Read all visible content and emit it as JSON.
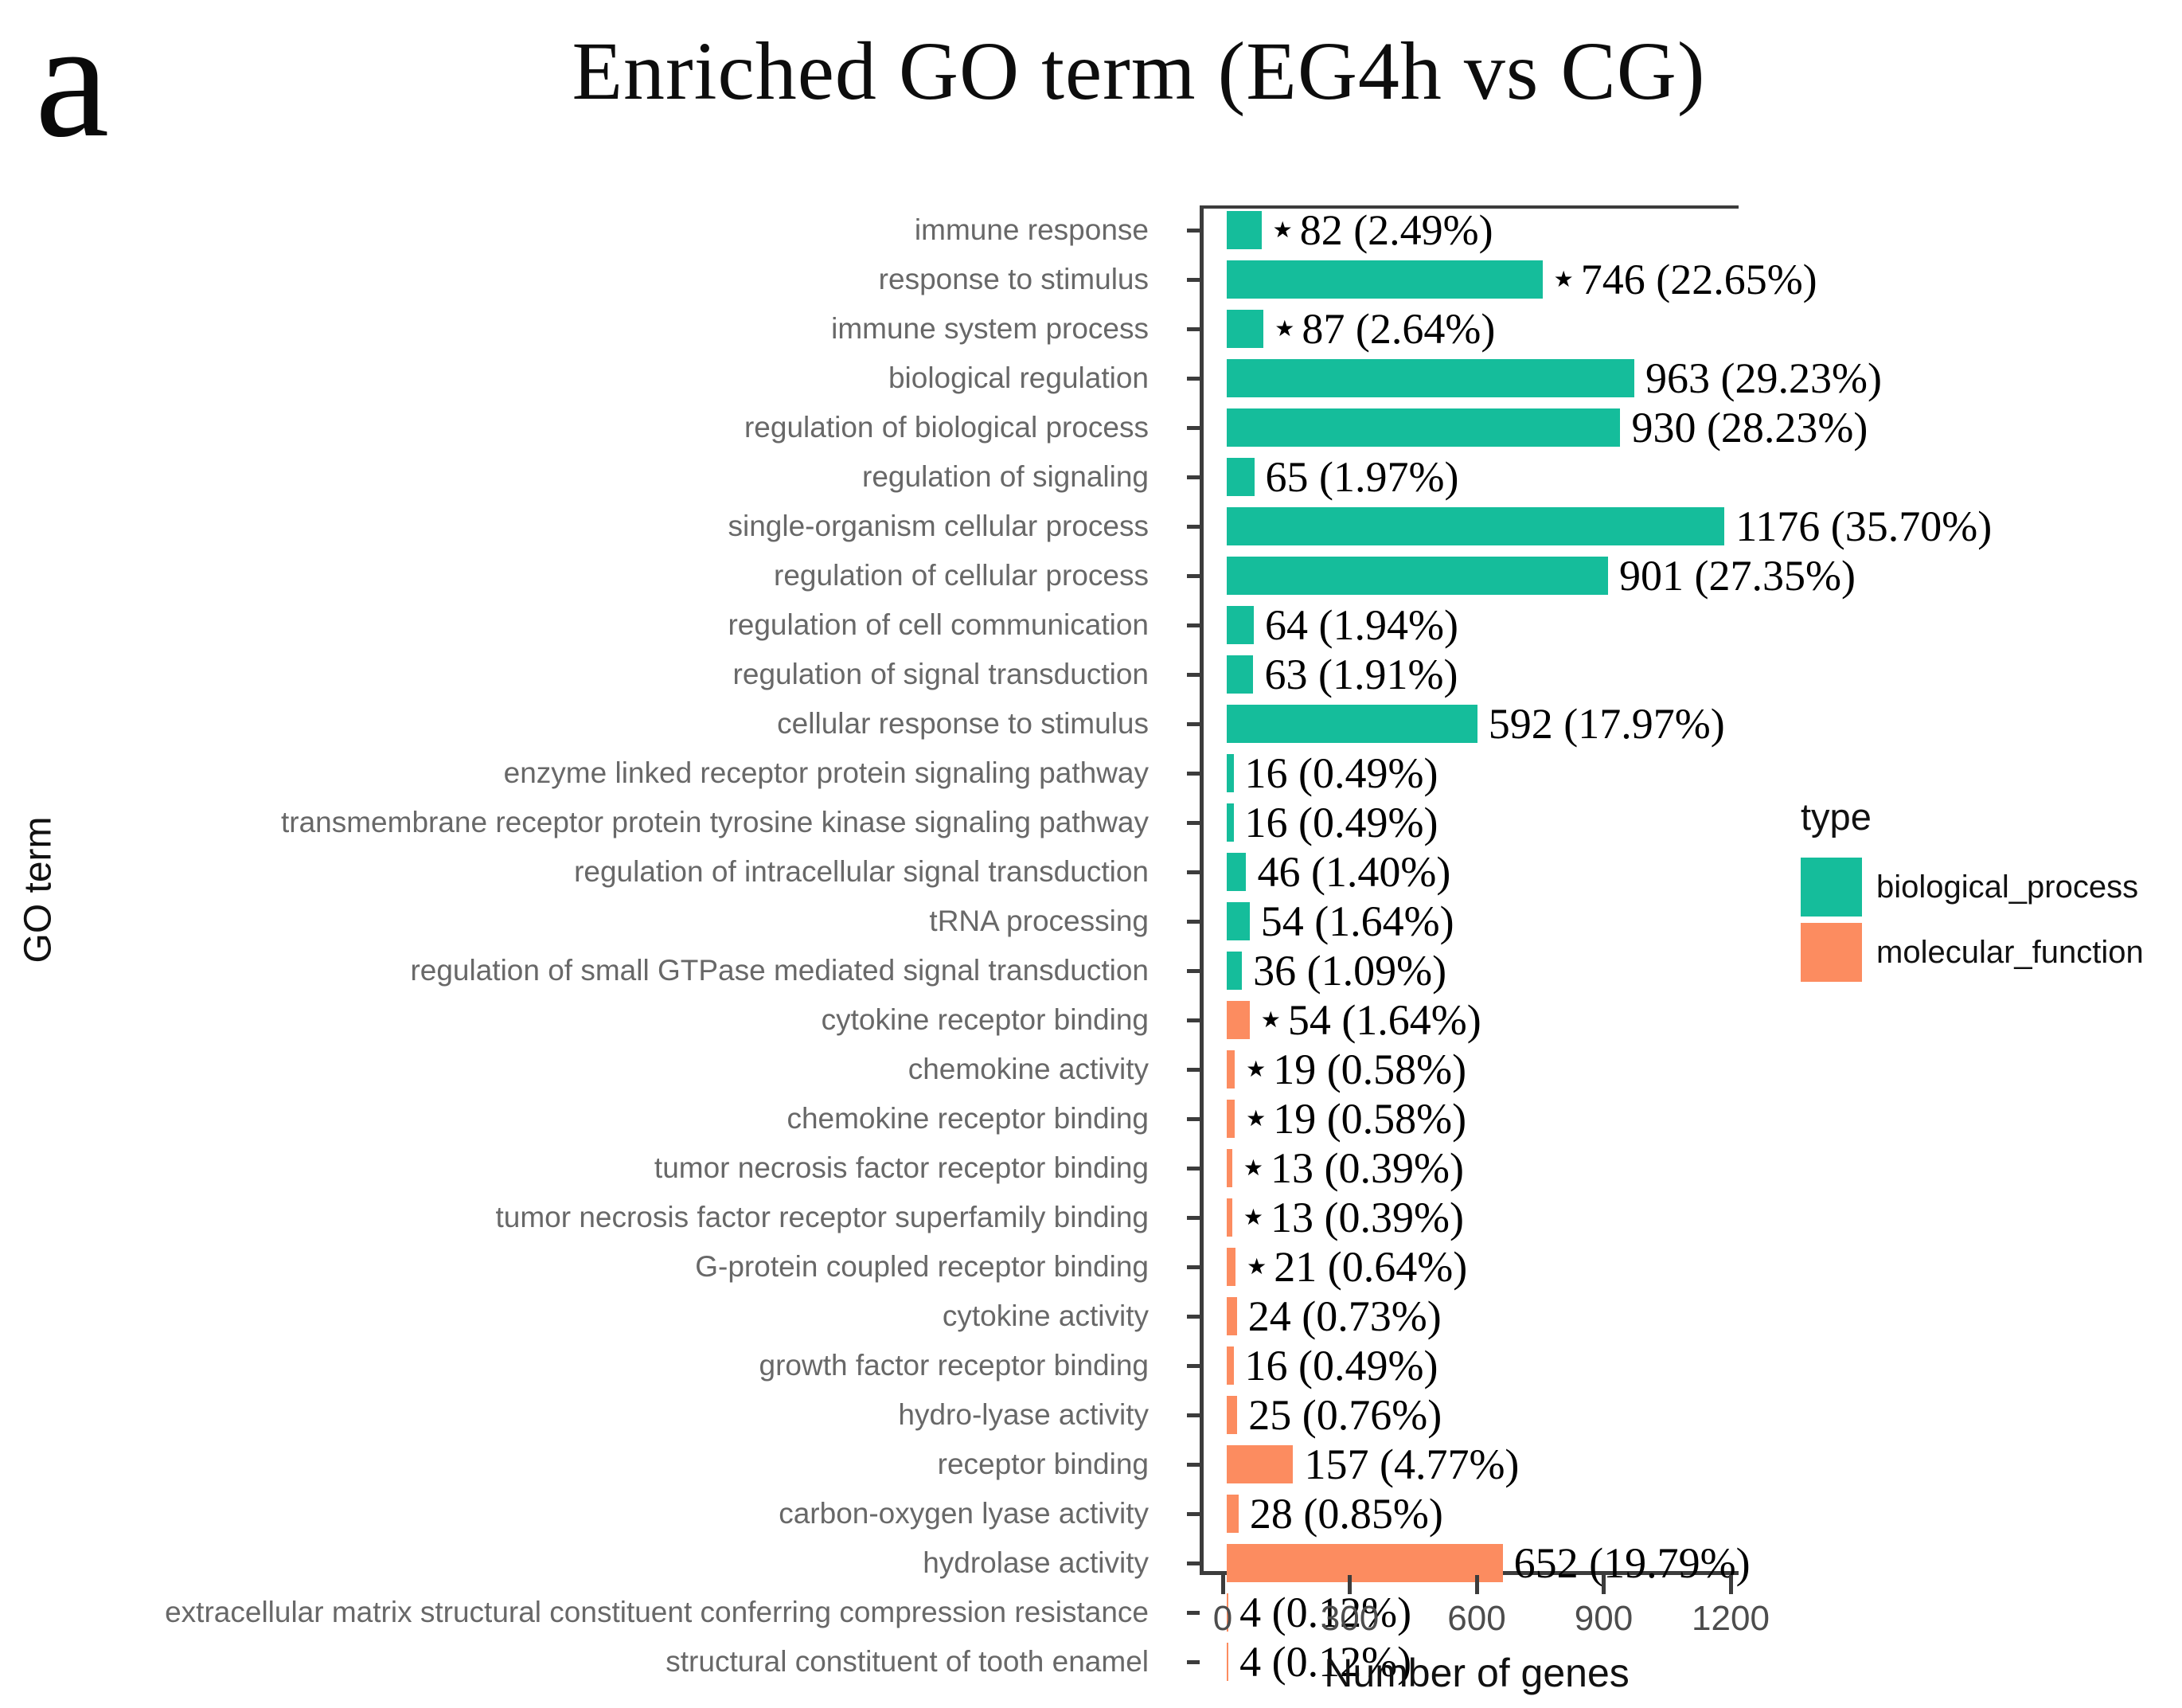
{
  "panel_label": "a",
  "title": "Enriched GO term (EG4h vs CG)",
  "markers": {
    "significant": "★"
  },
  "colors": {
    "biological_process": "#15BD9B",
    "molecular_function": "#FC8C60",
    "frame": "#3C3C3C",
    "category_label": "#686868",
    "tick_label": "#4D4D4D"
  },
  "legend": {
    "title": "type",
    "items": [
      {
        "label": "biological_process",
        "color": "#15BD9B"
      },
      {
        "label": "molecular_function",
        "color": "#FC8C60"
      }
    ]
  },
  "chart_data": {
    "type": "bar",
    "orientation": "horizontal",
    "title": "Enriched GO term (EG4h vs CG)",
    "xlabel": "Number of genes",
    "ylabel": "GO term",
    "xlim": [
      0,
      1200
    ],
    "x_ticks": [
      0,
      300,
      600,
      900,
      1200
    ],
    "grid": false,
    "legend_position": "right",
    "bars": [
      {
        "term": "immune response",
        "value": 82,
        "pct": "2.49",
        "display": "82 (2.49%)",
        "type": "biological_process",
        "starred": true
      },
      {
        "term": "response to stimulus",
        "value": 746,
        "pct": "22.65",
        "display": "746 (22.65%)",
        "type": "biological_process",
        "starred": true
      },
      {
        "term": "immune system process",
        "value": 87,
        "pct": "2.64",
        "display": "87 (2.64%)",
        "type": "biological_process",
        "starred": true
      },
      {
        "term": "biological regulation",
        "value": 963,
        "pct": "29.23",
        "display": "963 (29.23%)",
        "type": "biological_process",
        "starred": false
      },
      {
        "term": "regulation of biological process",
        "value": 930,
        "pct": "28.23",
        "display": "930 (28.23%)",
        "type": "biological_process",
        "starred": false
      },
      {
        "term": "regulation of signaling",
        "value": 65,
        "pct": "1.97",
        "display": "65 (1.97%)",
        "type": "biological_process",
        "starred": false
      },
      {
        "term": "single-organism cellular process",
        "value": 1176,
        "pct": "35.70",
        "display": "1176 (35.70%)",
        "type": "biological_process",
        "starred": false
      },
      {
        "term": "regulation of cellular process",
        "value": 901,
        "pct": "27.35",
        "display": "901 (27.35%)",
        "type": "biological_process",
        "starred": false
      },
      {
        "term": "regulation of cell communication",
        "value": 64,
        "pct": "1.94",
        "display": "64 (1.94%)",
        "type": "biological_process",
        "starred": false
      },
      {
        "term": "regulation of signal transduction",
        "value": 63,
        "pct": "1.91",
        "display": "63 (1.91%)",
        "type": "biological_process",
        "starred": false
      },
      {
        "term": "cellular response to stimulus",
        "value": 592,
        "pct": "17.97",
        "display": "592 (17.97%)",
        "type": "biological_process",
        "starred": false
      },
      {
        "term": "enzyme linked receptor protein signaling pathway",
        "value": 16,
        "pct": "0.49",
        "display": "16 (0.49%)",
        "type": "biological_process",
        "starred": false
      },
      {
        "term": "transmembrane receptor protein tyrosine kinase signaling pathway",
        "value": 16,
        "pct": "0.49",
        "display": "16 (0.49%)",
        "type": "biological_process",
        "starred": false
      },
      {
        "term": "regulation of intracellular signal transduction",
        "value": 46,
        "pct": "1.40",
        "display": "46 (1.40%)",
        "type": "biological_process",
        "starred": false
      },
      {
        "term": "tRNA processing",
        "value": 54,
        "pct": "1.64",
        "display": "54 (1.64%)",
        "type": "biological_process",
        "starred": false
      },
      {
        "term": "regulation of small GTPase mediated signal transduction",
        "value": 36,
        "pct": "1.09",
        "display": "36 (1.09%)",
        "type": "biological_process",
        "starred": false
      },
      {
        "term": "cytokine receptor binding",
        "value": 54,
        "pct": "1.64",
        "display": "54 (1.64%)",
        "type": "molecular_function",
        "starred": true
      },
      {
        "term": "chemokine activity",
        "value": 19,
        "pct": "0.58",
        "display": "19 (0.58%)",
        "type": "molecular_function",
        "starred": true
      },
      {
        "term": "chemokine receptor binding",
        "value": 19,
        "pct": "0.58",
        "display": "19 (0.58%)",
        "type": "molecular_function",
        "starred": true
      },
      {
        "term": "tumor necrosis factor receptor binding",
        "value": 13,
        "pct": "0.39",
        "display": "13 (0.39%)",
        "type": "molecular_function",
        "starred": true
      },
      {
        "term": "tumor necrosis factor receptor superfamily binding",
        "value": 13,
        "pct": "0.39",
        "display": "13 (0.39%)",
        "type": "molecular_function",
        "starred": true
      },
      {
        "term": "G-protein coupled receptor binding",
        "value": 21,
        "pct": "0.64",
        "display": "21 (0.64%)",
        "type": "molecular_function",
        "starred": true
      },
      {
        "term": "cytokine activity",
        "value": 24,
        "pct": "0.73",
        "display": "24 (0.73%)",
        "type": "molecular_function",
        "starred": false
      },
      {
        "term": "growth factor receptor binding",
        "value": 16,
        "pct": "0.49",
        "display": "16 (0.49%)",
        "type": "molecular_function",
        "starred": false
      },
      {
        "term": "hydro-lyase activity",
        "value": 25,
        "pct": "0.76",
        "display": "25 (0.76%)",
        "type": "molecular_function",
        "starred": false
      },
      {
        "term": "receptor binding",
        "value": 157,
        "pct": "4.77",
        "display": "157 (4.77%)",
        "type": "molecular_function",
        "starred": false
      },
      {
        "term": "carbon-oxygen lyase activity",
        "value": 28,
        "pct": "0.85",
        "display": "28 (0.85%)",
        "type": "molecular_function",
        "starred": false
      },
      {
        "term": "hydrolase activity",
        "value": 652,
        "pct": "19.79",
        "display": "652 (19.79%)",
        "type": "molecular_function",
        "starred": false
      },
      {
        "term": "extracellular matrix structural constituent conferring compression resistance",
        "value": 4,
        "pct": "0.12",
        "display": "4 (0.12%)",
        "type": "molecular_function",
        "starred": false
      },
      {
        "term": "structural constituent of tooth enamel",
        "value": 4,
        "pct": "0.12",
        "display": "4 (0.12%)",
        "type": "molecular_function",
        "starred": false
      }
    ]
  }
}
